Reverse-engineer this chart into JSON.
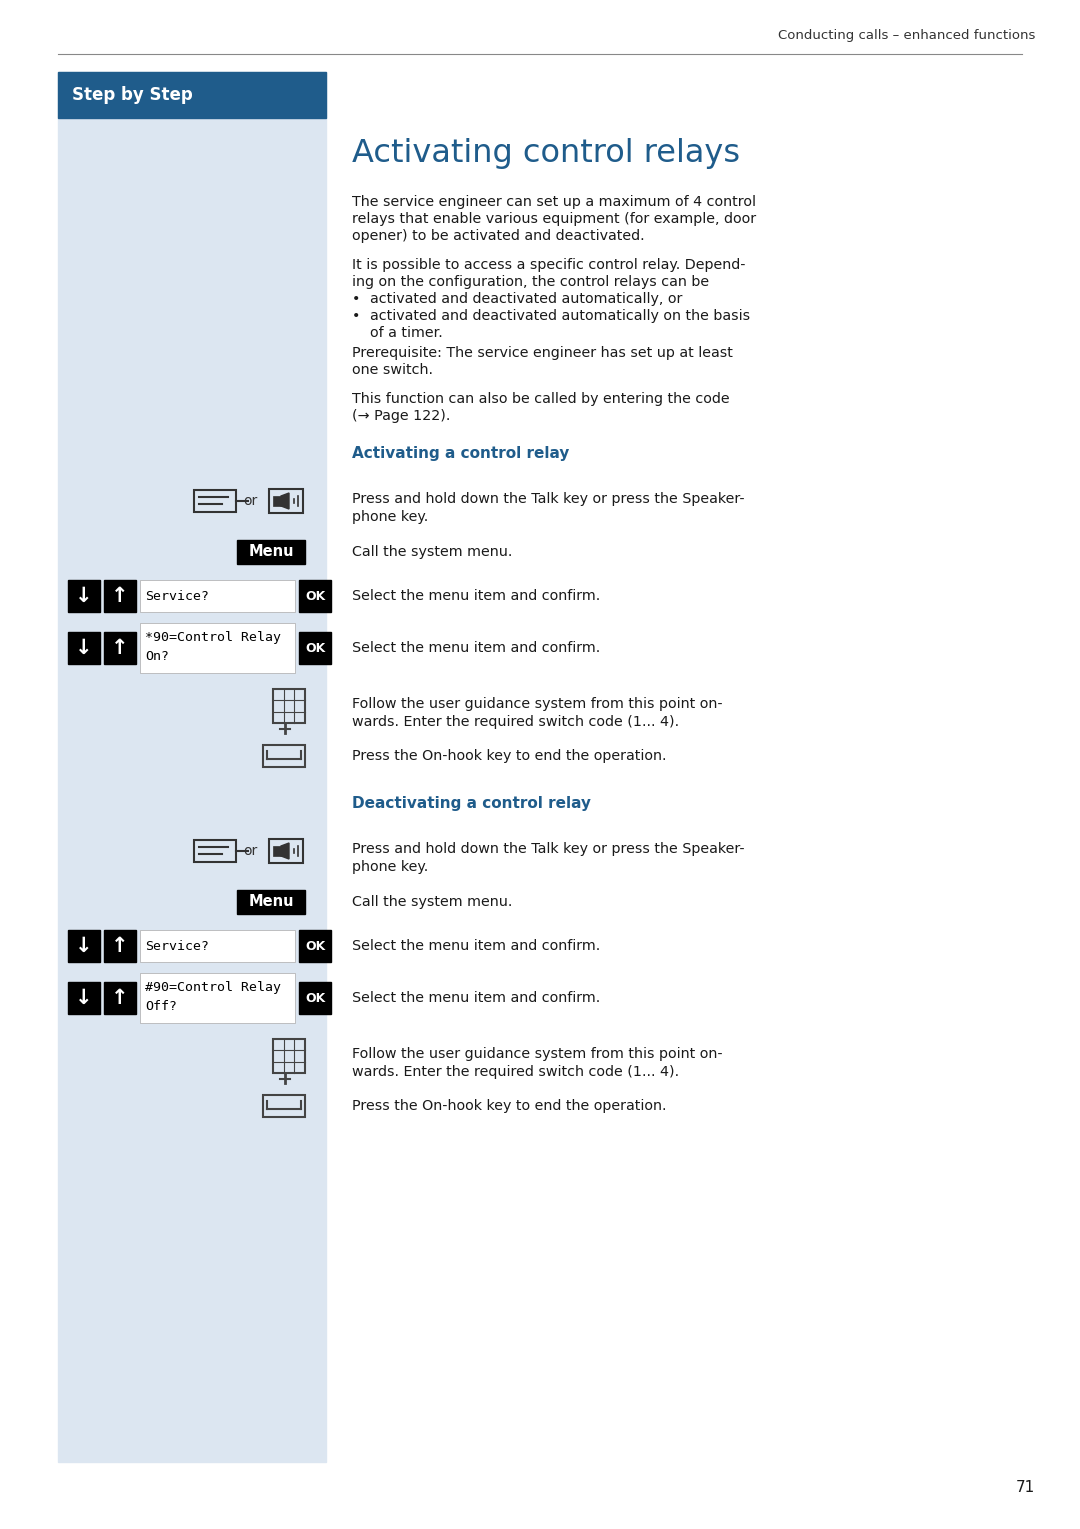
{
  "page_bg": "#ffffff",
  "left_panel_bg": "#dce6f1",
  "header_line_color": "#666666",
  "step_by_step_bg": "#1f5c8b",
  "step_by_step_text": "Step by Step",
  "header_text": "Conducting calls – enhanced functions",
  "page_number": "71",
  "title": "Activating control relays",
  "title_color": "#1f5c8b",
  "section1_title": "Activating a control relay",
  "section2_title": "Deactivating a control relay",
  "section_color": "#1f5c8b",
  "body_text_color": "#1a1a1a",
  "para1_lines": [
    "The service engineer can set up a maximum of 4 control",
    "relays that enable various equipment (for example, door",
    "opener) to be activated and deactivated."
  ],
  "para2_lines": [
    "It is possible to access a specific control relay. Depend-",
    "ing on the configuration, the control relays can be"
  ],
  "bullet1": "activated and deactivated automatically, or",
  "bullet2a": "activated and deactivated automatically on the basis",
  "bullet2b": "of a timer.",
  "para3_lines": [
    "Prerequisite: The service engineer has set up at least",
    "one switch."
  ],
  "para4_lines": [
    "This function can also be called by entering the code",
    "(→ Page 122)."
  ],
  "step_texts_activate": [
    "Press and hold down the Talk key or press the Speaker-\nphone key.",
    "Call the system menu.",
    "Select the menu item and confirm.",
    "Select the menu item and confirm.",
    "Follow the user guidance system from this point on-\nwards. Enter the required switch code (1... 4).",
    "Press the On-hook key to end the operation."
  ],
  "step_texts_deactivate": [
    "Press and hold down the Talk key or press the Speaker-\nphone key.",
    "Call the system menu.",
    "Select the menu item and confirm.",
    "Select the menu item and confirm.",
    "Follow the user guidance system from this point on-\nwards. Enter the required switch code (1... 4).",
    "Press the On-hook key to end the operation."
  ],
  "nav_label_activate_3": "Service?",
  "nav_label_activate_4": "*90=Control Relay\nOn?",
  "nav_label_deactivate_3": "Service?",
  "nav_label_deactivate_4": "#90=Control Relay\nOff?"
}
